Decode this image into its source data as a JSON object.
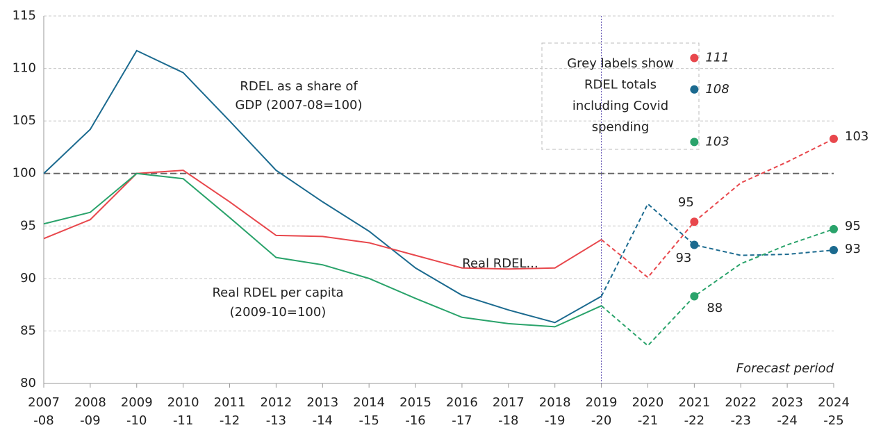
{
  "chart_data": {
    "type": "line",
    "categories": [
      [
        "2007",
        "-08"
      ],
      [
        "2008",
        "-09"
      ],
      [
        "2009",
        "-10"
      ],
      [
        "2010",
        "-11"
      ],
      [
        "2011",
        "-12"
      ],
      [
        "2012",
        "-13"
      ],
      [
        "2013",
        "-14"
      ],
      [
        "2014",
        "-15"
      ],
      [
        "2015",
        "-16"
      ],
      [
        "2016",
        "-17"
      ],
      [
        "2017",
        "-18"
      ],
      [
        "2018",
        "-19"
      ],
      [
        "2019",
        "-20"
      ],
      [
        "2020",
        "-21"
      ],
      [
        "2021",
        "-22"
      ],
      [
        "2022",
        "-23"
      ],
      [
        "2023",
        "-24"
      ],
      [
        "2024",
        "-25"
      ]
    ],
    "ylim": [
      80,
      115
    ],
    "yticks": [
      80,
      85,
      90,
      95,
      100,
      105,
      110,
      115
    ],
    "grid": true,
    "reference_line": 100,
    "forecast": {
      "at": 12,
      "label": "Forecast period"
    },
    "series": [
      {
        "name": "RDEL as a share of GDP (2007-08=100)",
        "label_lines": [
          "RDEL as a share of",
          "GDP (2007-08=100)"
        ],
        "color": "#1b6a8f",
        "values": [
          100,
          104.2,
          111.7,
          109.6,
          105,
          100.3,
          97.3,
          94.5,
          91,
          88.4,
          87,
          85.8,
          88.3,
          97.1,
          93.2,
          92.2,
          92.3,
          92.7
        ],
        "value_labels": [
          null,
          null,
          null,
          null,
          null,
          null,
          null,
          null,
          null,
          null,
          null,
          null,
          null,
          null,
          "93",
          null,
          null,
          "93"
        ],
        "covid": {
          "at": 14,
          "value": 108,
          "label": "108"
        }
      },
      {
        "name": "Real RDEL...",
        "label_lines": [
          "Real RDEL..."
        ],
        "color": "#e8474c",
        "values": [
          93.8,
          95.6,
          100,
          100.3,
          97.3,
          94.1,
          94,
          93.4,
          92.2,
          91,
          90.9,
          91,
          93.7,
          90.1,
          95.4,
          99.1,
          101.1,
          103.3
        ],
        "value_labels": [
          null,
          null,
          null,
          null,
          null,
          null,
          null,
          null,
          null,
          null,
          null,
          null,
          null,
          null,
          "95",
          null,
          null,
          "103"
        ],
        "covid": {
          "at": 14,
          "value": 111,
          "label": "111"
        }
      },
      {
        "name": "Real RDEL per capita (2009-10=100)",
        "label_lines": [
          "Real RDEL per capita",
          "(2009-10=100)"
        ],
        "color": "#2aa36b",
        "values": [
          95.2,
          96.3,
          100,
          99.5,
          95.8,
          92,
          91.3,
          90,
          88.1,
          86.3,
          85.7,
          85.4,
          87.4,
          83.6,
          88.3,
          91.4,
          93.2,
          94.7
        ],
        "value_labels": [
          null,
          null,
          null,
          null,
          null,
          null,
          null,
          null,
          null,
          null,
          null,
          null,
          null,
          null,
          "88",
          null,
          null,
          "95"
        ],
        "covid": {
          "at": 14,
          "value": 103,
          "label": "103"
        }
      }
    ],
    "note_lines": [
      "Grey labels show",
      "RDEL totals",
      "including Covid",
      "spending"
    ]
  }
}
